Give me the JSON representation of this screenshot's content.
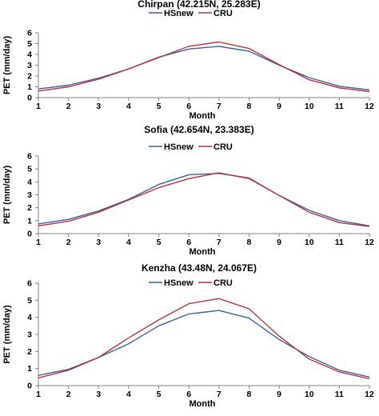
{
  "chart_data": [
    {
      "type": "line",
      "title": "Chirpan (42.215N, 25.283E)",
      "xlabel": "Month",
      "ylabel": "PET (mm/day)",
      "x": [
        1,
        2,
        3,
        4,
        5,
        6,
        7,
        8,
        9,
        10,
        11,
        12
      ],
      "xlim": [
        1,
        12
      ],
      "ylim": [
        0,
        6
      ],
      "yticks": [
        0,
        1,
        2,
        3,
        4,
        5,
        6
      ],
      "legend": "top-center",
      "series": [
        {
          "name": "HSnew",
          "color": "#3a5fa6",
          "values": [
            0.8,
            1.15,
            1.8,
            2.65,
            3.75,
            4.5,
            4.75,
            4.3,
            3.0,
            1.85,
            1.05,
            0.7
          ]
        },
        {
          "name": "CRU",
          "color": "#b8333a",
          "values": [
            0.6,
            1.0,
            1.7,
            2.65,
            3.7,
            4.75,
            5.15,
            4.55,
            3.05,
            1.65,
            0.9,
            0.55
          ]
        }
      ]
    },
    {
      "type": "line",
      "title": "Sofia (42.654N, 23.383E)",
      "xlabel": "Month",
      "ylabel": "PET (mm/day)",
      "x": [
        1,
        2,
        3,
        4,
        5,
        6,
        7,
        8,
        9,
        10,
        11,
        12
      ],
      "xlim": [
        1,
        12
      ],
      "ylim": [
        0,
        6
      ],
      "yticks": [
        0,
        1,
        2,
        3,
        4,
        5,
        6
      ],
      "legend": "top-center",
      "series": [
        {
          "name": "HSnew",
          "color": "#3a5fa6",
          "values": [
            0.75,
            1.1,
            1.75,
            2.65,
            3.8,
            4.55,
            4.65,
            4.3,
            2.95,
            1.8,
            1.0,
            0.6
          ]
        },
        {
          "name": "CRU",
          "color": "#b8333a",
          "values": [
            0.6,
            0.95,
            1.65,
            2.6,
            3.55,
            4.25,
            4.7,
            4.25,
            2.95,
            1.65,
            0.85,
            0.55
          ]
        }
      ]
    },
    {
      "type": "line",
      "title": "Kenzha (43.48N, 24.067E)",
      "xlabel": "Month",
      "ylabel": "PET (mm/day)",
      "x": [
        1,
        2,
        3,
        4,
        5,
        6,
        7,
        8,
        9,
        10,
        11,
        12
      ],
      "xlim": [
        1,
        12
      ],
      "ylim": [
        0,
        6
      ],
      "yticks": [
        0,
        1,
        2,
        3,
        4,
        5,
        6
      ],
      "legend": "top-center",
      "series": [
        {
          "name": "HSnew",
          "color": "#3a5fa6",
          "values": [
            0.6,
            0.95,
            1.65,
            2.45,
            3.5,
            4.2,
            4.4,
            3.95,
            2.7,
            1.7,
            0.9,
            0.5
          ]
        },
        {
          "name": "CRU",
          "color": "#b8333a",
          "values": [
            0.45,
            0.9,
            1.65,
            2.8,
            3.85,
            4.8,
            5.1,
            4.5,
            2.9,
            1.55,
            0.8,
            0.4
          ]
        }
      ]
    }
  ]
}
